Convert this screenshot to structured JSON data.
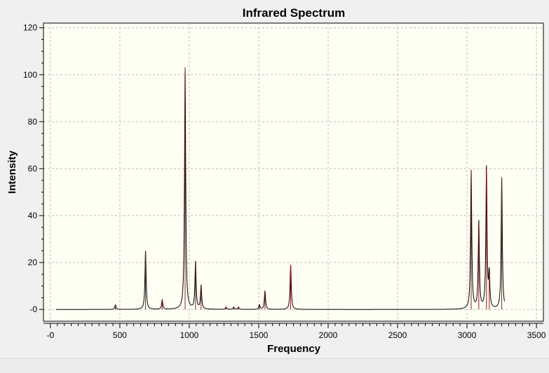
{
  "colors": {
    "page_bg": "#f0f0f0",
    "plot_bg": "#fffff4",
    "grid": "#bdbdbd",
    "spectrum_line": "#000000",
    "stick": "#9b1c1c"
  },
  "chart_data": {
    "type": "line",
    "title": "Infrared Spectrum",
    "xlabel": "Frequency",
    "ylabel": "Intensity",
    "xlim": [
      -50,
      3550
    ],
    "ylim": [
      -5,
      122
    ],
    "x_ticks": [
      {
        "value": -0.0,
        "label": "-0"
      },
      {
        "value": 500,
        "label": "500"
      },
      {
        "value": 1000,
        "label": "1000"
      },
      {
        "value": 1500,
        "label": "1500"
      },
      {
        "value": 2000,
        "label": "2000"
      },
      {
        "value": 2500,
        "label": "2500"
      },
      {
        "value": 3000,
        "label": "3000"
      },
      {
        "value": 3500,
        "label": "3500"
      }
    ],
    "y_ticks": [
      {
        "value": 0,
        "label": "-0"
      },
      {
        "value": 20,
        "label": "20"
      },
      {
        "value": 40,
        "label": "40"
      },
      {
        "value": 60,
        "label": "60"
      },
      {
        "value": 80,
        "label": "80"
      },
      {
        "value": 100,
        "label": "100"
      },
      {
        "value": 120,
        "label": "120"
      }
    ],
    "grid": true,
    "spectrum_range": [
      40,
      3270
    ],
    "linewidth": 5,
    "peaks": [
      {
        "x": 468,
        "y": 2
      },
      {
        "x": 685,
        "y": 25
      },
      {
        "x": 805,
        "y": 4
      },
      {
        "x": 970,
        "y": 103
      },
      {
        "x": 1045,
        "y": 20
      },
      {
        "x": 1085,
        "y": 10
      },
      {
        "x": 1265,
        "y": 1
      },
      {
        "x": 1320,
        "y": 1
      },
      {
        "x": 1355,
        "y": 1
      },
      {
        "x": 1505,
        "y": 2
      },
      {
        "x": 1545,
        "y": 8
      },
      {
        "x": 1730,
        "y": 19
      },
      {
        "x": 3030,
        "y": 59
      },
      {
        "x": 3085,
        "y": 37
      },
      {
        "x": 3140,
        "y": 60
      },
      {
        "x": 3160,
        "y": 14
      },
      {
        "x": 3250,
        "y": 56
      }
    ]
  }
}
